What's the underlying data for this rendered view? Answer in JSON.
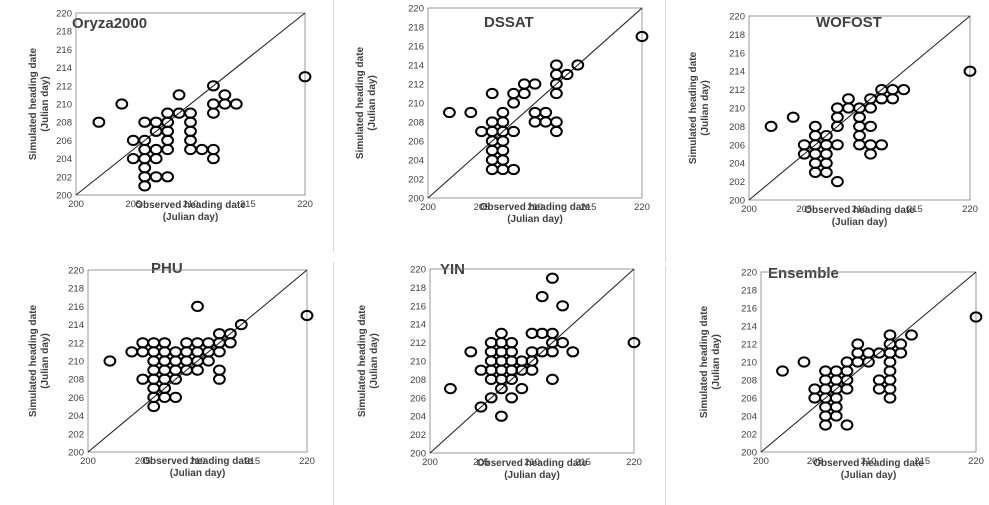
{
  "chart_data": [
    {
      "type": "scatter",
      "title": "Oryza2000",
      "xlabel": [
        "Observed heading date",
        "(Julian day)"
      ],
      "ylabel": [
        "Simulated heading date",
        "(Julian day)"
      ],
      "xlim": [
        200,
        220
      ],
      "ylim": [
        200,
        220
      ],
      "xticks": [
        200,
        205,
        210,
        215,
        220
      ],
      "yticks": [
        200,
        202,
        204,
        206,
        208,
        210,
        212,
        214,
        216,
        218,
        220
      ],
      "one_to_one_line": true,
      "points": [
        [
          202,
          208
        ],
        [
          204,
          210
        ],
        [
          205,
          204
        ],
        [
          205,
          206
        ],
        [
          206,
          201
        ],
        [
          206,
          202
        ],
        [
          206,
          203
        ],
        [
          206,
          204
        ],
        [
          206,
          205
        ],
        [
          206,
          206
        ],
        [
          206,
          208
        ],
        [
          207,
          202
        ],
        [
          207,
          204
        ],
        [
          207,
          205
        ],
        [
          207,
          207
        ],
        [
          207,
          208
        ],
        [
          208,
          202
        ],
        [
          208,
          205
        ],
        [
          208,
          206
        ],
        [
          208,
          207
        ],
        [
          208,
          208
        ],
        [
          208,
          209
        ],
        [
          209,
          209
        ],
        [
          209,
          211
        ],
        [
          210,
          205
        ],
        [
          210,
          206
        ],
        [
          210,
          207
        ],
        [
          210,
          208
        ],
        [
          210,
          209
        ],
        [
          211,
          205
        ],
        [
          212,
          204
        ],
        [
          212,
          205
        ],
        [
          212,
          209
        ],
        [
          212,
          210
        ],
        [
          212,
          212
        ],
        [
          213,
          210
        ],
        [
          213,
          211
        ],
        [
          214,
          210
        ],
        [
          220,
          213
        ]
      ]
    },
    {
      "type": "scatter",
      "title": "DSSAT",
      "xlabel": [
        "Observed heading date",
        "(Julian day)"
      ],
      "ylabel": [
        "Simulated heading date",
        "(Julian day)"
      ],
      "xlim": [
        200,
        220
      ],
      "ylim": [
        200,
        220
      ],
      "xticks": [
        200,
        205,
        210,
        215,
        220
      ],
      "yticks": [
        200,
        202,
        204,
        206,
        208,
        210,
        212,
        214,
        216,
        218,
        220
      ],
      "one_to_one_line": true,
      "points": [
        [
          202,
          209
        ],
        [
          204,
          209
        ],
        [
          205,
          207
        ],
        [
          206,
          203
        ],
        [
          206,
          204
        ],
        [
          206,
          205
        ],
        [
          206,
          206
        ],
        [
          206,
          207
        ],
        [
          206,
          208
        ],
        [
          206,
          211
        ],
        [
          207,
          203
        ],
        [
          207,
          204
        ],
        [
          207,
          205
        ],
        [
          207,
          206
        ],
        [
          207,
          207
        ],
        [
          207,
          208
        ],
        [
          207,
          209
        ],
        [
          208,
          203
        ],
        [
          208,
          207
        ],
        [
          208,
          210
        ],
        [
          208,
          211
        ],
        [
          209,
          211
        ],
        [
          209,
          212
        ],
        [
          210,
          208
        ],
        [
          210,
          209
        ],
        [
          210,
          212
        ],
        [
          211,
          208
        ],
        [
          211,
          209
        ],
        [
          212,
          207
        ],
        [
          212,
          208
        ],
        [
          212,
          211
        ],
        [
          212,
          212
        ],
        [
          212,
          213
        ],
        [
          212,
          214
        ],
        [
          213,
          213
        ],
        [
          214,
          214
        ],
        [
          220,
          217
        ]
      ]
    },
    {
      "type": "scatter",
      "title": "WOFOST",
      "xlabel": [
        "Observed heading date",
        "(Julian day)"
      ],
      "ylabel": [
        "Simulated heading date",
        "(Julian day)"
      ],
      "xlim": [
        200,
        220
      ],
      "ylim": [
        200,
        220
      ],
      "xticks": [
        200,
        205,
        210,
        215,
        220
      ],
      "yticks": [
        200,
        202,
        204,
        206,
        208,
        210,
        212,
        214,
        216,
        218,
        220
      ],
      "one_to_one_line": true,
      "points": [
        [
          202,
          208
        ],
        [
          204,
          209
        ],
        [
          205,
          205
        ],
        [
          205,
          206
        ],
        [
          206,
          203
        ],
        [
          206,
          204
        ],
        [
          206,
          205
        ],
        [
          206,
          206
        ],
        [
          206,
          207
        ],
        [
          206,
          208
        ],
        [
          207,
          203
        ],
        [
          207,
          204
        ],
        [
          207,
          205
        ],
        [
          207,
          206
        ],
        [
          207,
          207
        ],
        [
          208,
          202
        ],
        [
          208,
          206
        ],
        [
          208,
          208
        ],
        [
          208,
          209
        ],
        [
          208,
          210
        ],
        [
          209,
          210
        ],
        [
          209,
          211
        ],
        [
          210,
          206
        ],
        [
          210,
          207
        ],
        [
          210,
          208
        ],
        [
          210,
          209
        ],
        [
          210,
          210
        ],
        [
          211,
          205
        ],
        [
          211,
          206
        ],
        [
          211,
          208
        ],
        [
          211,
          210
        ],
        [
          211,
          211
        ],
        [
          212,
          206
        ],
        [
          212,
          211
        ],
        [
          212,
          212
        ],
        [
          213,
          211
        ],
        [
          213,
          212
        ],
        [
          214,
          212
        ],
        [
          220,
          214
        ]
      ]
    },
    {
      "type": "scatter",
      "title": "PHU",
      "xlabel": [
        "Observed heading date",
        "(Julian day)"
      ],
      "ylabel": [
        "Simulated heading date",
        "(Julian day)"
      ],
      "xlim": [
        200,
        220
      ],
      "ylim": [
        200,
        220
      ],
      "xticks": [
        200,
        205,
        210,
        215,
        220
      ],
      "yticks": [
        200,
        202,
        204,
        206,
        208,
        210,
        212,
        214,
        216,
        218,
        220
      ],
      "one_to_one_line": true,
      "points": [
        [
          202,
          210
        ],
        [
          204,
          211
        ],
        [
          205,
          208
        ],
        [
          205,
          211
        ],
        [
          205,
          212
        ],
        [
          206,
          205
        ],
        [
          206,
          206
        ],
        [
          206,
          207
        ],
        [
          206,
          208
        ],
        [
          206,
          209
        ],
        [
          206,
          210
        ],
        [
          206,
          211
        ],
        [
          206,
          212
        ],
        [
          207,
          206
        ],
        [
          207,
          207
        ],
        [
          207,
          208
        ],
        [
          207,
          209
        ],
        [
          207,
          210
        ],
        [
          207,
          211
        ],
        [
          207,
          212
        ],
        [
          208,
          206
        ],
        [
          208,
          208
        ],
        [
          208,
          209
        ],
        [
          208,
          210
        ],
        [
          208,
          211
        ],
        [
          209,
          209
        ],
        [
          209,
          210
        ],
        [
          209,
          211
        ],
        [
          209,
          212
        ],
        [
          210,
          209
        ],
        [
          210,
          210
        ],
        [
          210,
          211
        ],
        [
          210,
          212
        ],
        [
          210,
          216
        ],
        [
          211,
          210
        ],
        [
          211,
          211
        ],
        [
          211,
          212
        ],
        [
          212,
          208
        ],
        [
          212,
          209
        ],
        [
          212,
          211
        ],
        [
          212,
          212
        ],
        [
          212,
          213
        ],
        [
          213,
          212
        ],
        [
          213,
          213
        ],
        [
          214,
          214
        ],
        [
          220,
          215
        ]
      ]
    },
    {
      "type": "scatter",
      "title": "YIN",
      "xlabel": [
        "Observed heading date",
        "(Julian day)"
      ],
      "ylabel": [
        "Simulated heading date",
        "(Julian day)"
      ],
      "xlim": [
        200,
        220
      ],
      "ylim": [
        200,
        220
      ],
      "xticks": [
        200,
        205,
        210,
        215,
        220
      ],
      "yticks": [
        200,
        202,
        204,
        206,
        208,
        210,
        212,
        214,
        216,
        218,
        220
      ],
      "one_to_one_line": true,
      "points": [
        [
          202,
          207
        ],
        [
          204,
          211
        ],
        [
          205,
          205
        ],
        [
          205,
          209
        ],
        [
          206,
          206
        ],
        [
          206,
          208
        ],
        [
          206,
          209
        ],
        [
          206,
          210
        ],
        [
          206,
          211
        ],
        [
          206,
          212
        ],
        [
          207,
          204
        ],
        [
          207,
          207
        ],
        [
          207,
          208
        ],
        [
          207,
          209
        ],
        [
          207,
          210
        ],
        [
          207,
          211
        ],
        [
          207,
          212
        ],
        [
          207,
          213
        ],
        [
          208,
          206
        ],
        [
          208,
          208
        ],
        [
          208,
          209
        ],
        [
          208,
          210
        ],
        [
          208,
          211
        ],
        [
          208,
          212
        ],
        [
          209,
          207
        ],
        [
          209,
          209
        ],
        [
          209,
          210
        ],
        [
          210,
          209
        ],
        [
          210,
          210
        ],
        [
          210,
          211
        ],
        [
          210,
          213
        ],
        [
          211,
          211
        ],
        [
          211,
          213
        ],
        [
          211,
          217
        ],
        [
          212,
          208
        ],
        [
          212,
          211
        ],
        [
          212,
          212
        ],
        [
          212,
          213
        ],
        [
          212,
          219
        ],
        [
          213,
          212
        ],
        [
          213,
          216
        ],
        [
          214,
          211
        ],
        [
          220,
          212
        ]
      ]
    },
    {
      "type": "scatter",
      "title": "Ensemble",
      "xlabel": [
        "Observed heading date",
        "(Julian day)"
      ],
      "ylabel": [
        "Simulated heading date",
        "(Julian day)"
      ],
      "xlim": [
        200,
        220
      ],
      "ylim": [
        200,
        220
      ],
      "xticks": [
        200,
        205,
        210,
        215,
        220
      ],
      "yticks": [
        200,
        202,
        204,
        206,
        208,
        210,
        212,
        214,
        216,
        218,
        220
      ],
      "one_to_one_line": true,
      "points": [
        [
          202,
          209
        ],
        [
          204,
          210
        ],
        [
          205,
          206
        ],
        [
          205,
          207
        ],
        [
          206,
          203
        ],
        [
          206,
          204
        ],
        [
          206,
          205
        ],
        [
          206,
          206
        ],
        [
          206,
          207
        ],
        [
          206,
          208
        ],
        [
          206,
          209
        ],
        [
          207,
          204
        ],
        [
          207,
          205
        ],
        [
          207,
          206
        ],
        [
          207,
          207
        ],
        [
          207,
          208
        ],
        [
          207,
          209
        ],
        [
          208,
          203
        ],
        [
          208,
          207
        ],
        [
          208,
          208
        ],
        [
          208,
          209
        ],
        [
          208,
          210
        ],
        [
          209,
          210
        ],
        [
          209,
          211
        ],
        [
          209,
          212
        ],
        [
          210,
          210
        ],
        [
          210,
          211
        ],
        [
          211,
          207
        ],
        [
          211,
          208
        ],
        [
          211,
          211
        ],
        [
          212,
          206
        ],
        [
          212,
          207
        ],
        [
          212,
          208
        ],
        [
          212,
          209
        ],
        [
          212,
          210
        ],
        [
          212,
          211
        ],
        [
          212,
          212
        ],
        [
          212,
          213
        ],
        [
          213,
          211
        ],
        [
          213,
          212
        ],
        [
          214,
          213
        ],
        [
          220,
          215
        ]
      ]
    }
  ]
}
